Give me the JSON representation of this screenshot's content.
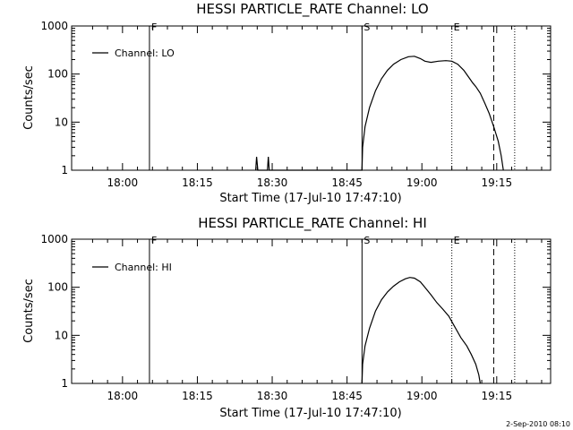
{
  "footer_timestamp": "2-Sep-2010 08:10",
  "chart_data": [
    {
      "type": "line",
      "title": "HESSI PARTICLE_RATE Channel: LO",
      "xlabel": "Start Time (17-Jul-10 17:47:10)",
      "ylabel": "Counts/sec",
      "y_scale": "log",
      "ylim": [
        1,
        1000
      ],
      "y_ticks": [
        1,
        10,
        100,
        1000
      ],
      "y_tick_labels": [
        "1",
        "10",
        "100",
        "1000"
      ],
      "xlim_minutes": [
        17.83,
        19.43
      ],
      "x_ticks": [
        18.0,
        18.25,
        18.5,
        18.75,
        19.0,
        19.25
      ],
      "x_tick_labels": [
        "18:00",
        "18:15",
        "18:30",
        "18:45",
        "19:00",
        "19:15"
      ],
      "legend": "Channel: LO",
      "legend_position": "top-left",
      "markers": [
        {
          "label": "F",
          "x": 18.09,
          "style": "solid"
        },
        {
          "label": "S",
          "x": 18.8,
          "style": "solid"
        },
        {
          "label": "E",
          "x": 19.1,
          "style": "dotted"
        },
        {
          "label": "",
          "x": 19.24,
          "style": "dashed"
        },
        {
          "label": "",
          "x": 19.31,
          "style": "dotted"
        }
      ],
      "series": [
        {
          "name": "Channel: LO",
          "points": [
            [
              18.445,
              1
            ],
            [
              18.448,
              1.9
            ],
            [
              18.452,
              1
            ],
            [
              18.484,
              1
            ],
            [
              18.487,
              1.9
            ],
            [
              18.49,
              1
            ],
            [
              18.8,
              1
            ],
            [
              18.802,
              3
            ],
            [
              18.81,
              8
            ],
            [
              18.825,
              20
            ],
            [
              18.845,
              45
            ],
            [
              18.865,
              80
            ],
            [
              18.885,
              120
            ],
            [
              18.905,
              160
            ],
            [
              18.93,
              200
            ],
            [
              18.955,
              230
            ],
            [
              18.975,
              235
            ],
            [
              18.995,
              210
            ],
            [
              19.01,
              185
            ],
            [
              19.03,
              175
            ],
            [
              19.055,
              185
            ],
            [
              19.08,
              190
            ],
            [
              19.1,
              185
            ],
            [
              19.12,
              160
            ],
            [
              19.14,
              120
            ],
            [
              19.16,
              80
            ],
            [
              19.17,
              65
            ],
            [
              19.18,
              55
            ],
            [
              19.195,
              40
            ],
            [
              19.21,
              25
            ],
            [
              19.225,
              15
            ],
            [
              19.24,
              8
            ],
            [
              19.255,
              4
            ],
            [
              19.265,
              2
            ],
            [
              19.272,
              1
            ]
          ]
        }
      ]
    },
    {
      "type": "line",
      "title": "HESSI PARTICLE_RATE Channel: HI",
      "xlabel": "Start Time (17-Jul-10 17:47:10)",
      "ylabel": "Counts/sec",
      "y_scale": "log",
      "ylim": [
        1,
        1000
      ],
      "y_ticks": [
        1,
        10,
        100,
        1000
      ],
      "y_tick_labels": [
        "1",
        "10",
        "100",
        "1000"
      ],
      "xlim_minutes": [
        17.83,
        19.43
      ],
      "x_ticks": [
        18.0,
        18.25,
        18.5,
        18.75,
        19.0,
        19.25
      ],
      "x_tick_labels": [
        "18:00",
        "18:15",
        "18:30",
        "18:45",
        "19:00",
        "19:15"
      ],
      "legend": "Channel: HI",
      "legend_position": "top-left",
      "markers": [
        {
          "label": "F",
          "x": 18.09,
          "style": "solid"
        },
        {
          "label": "S",
          "x": 18.8,
          "style": "solid"
        },
        {
          "label": "E",
          "x": 19.1,
          "style": "dotted"
        },
        {
          "label": "",
          "x": 19.24,
          "style": "dashed"
        },
        {
          "label": "",
          "x": 19.31,
          "style": "dotted"
        }
      ],
      "series": [
        {
          "name": "Channel: HI",
          "points": [
            [
              18.8,
              1
            ],
            [
              18.802,
              2.5
            ],
            [
              18.81,
              6
            ],
            [
              18.825,
              14
            ],
            [
              18.845,
              32
            ],
            [
              18.865,
              55
            ],
            [
              18.885,
              80
            ],
            [
              18.905,
              105
            ],
            [
              18.925,
              130
            ],
            [
              18.945,
              150
            ],
            [
              18.96,
              160
            ],
            [
              18.975,
              155
            ],
            [
              18.995,
              130
            ],
            [
              19.01,
              100
            ],
            [
              19.03,
              70
            ],
            [
              19.05,
              48
            ],
            [
              19.07,
              35
            ],
            [
              19.09,
              25
            ],
            [
              19.11,
              15
            ],
            [
              19.13,
              9
            ],
            [
              19.15,
              6
            ],
            [
              19.165,
              4
            ],
            [
              19.18,
              2.5
            ],
            [
              19.19,
              1.5
            ],
            [
              19.195,
              1
            ]
          ]
        }
      ]
    }
  ]
}
